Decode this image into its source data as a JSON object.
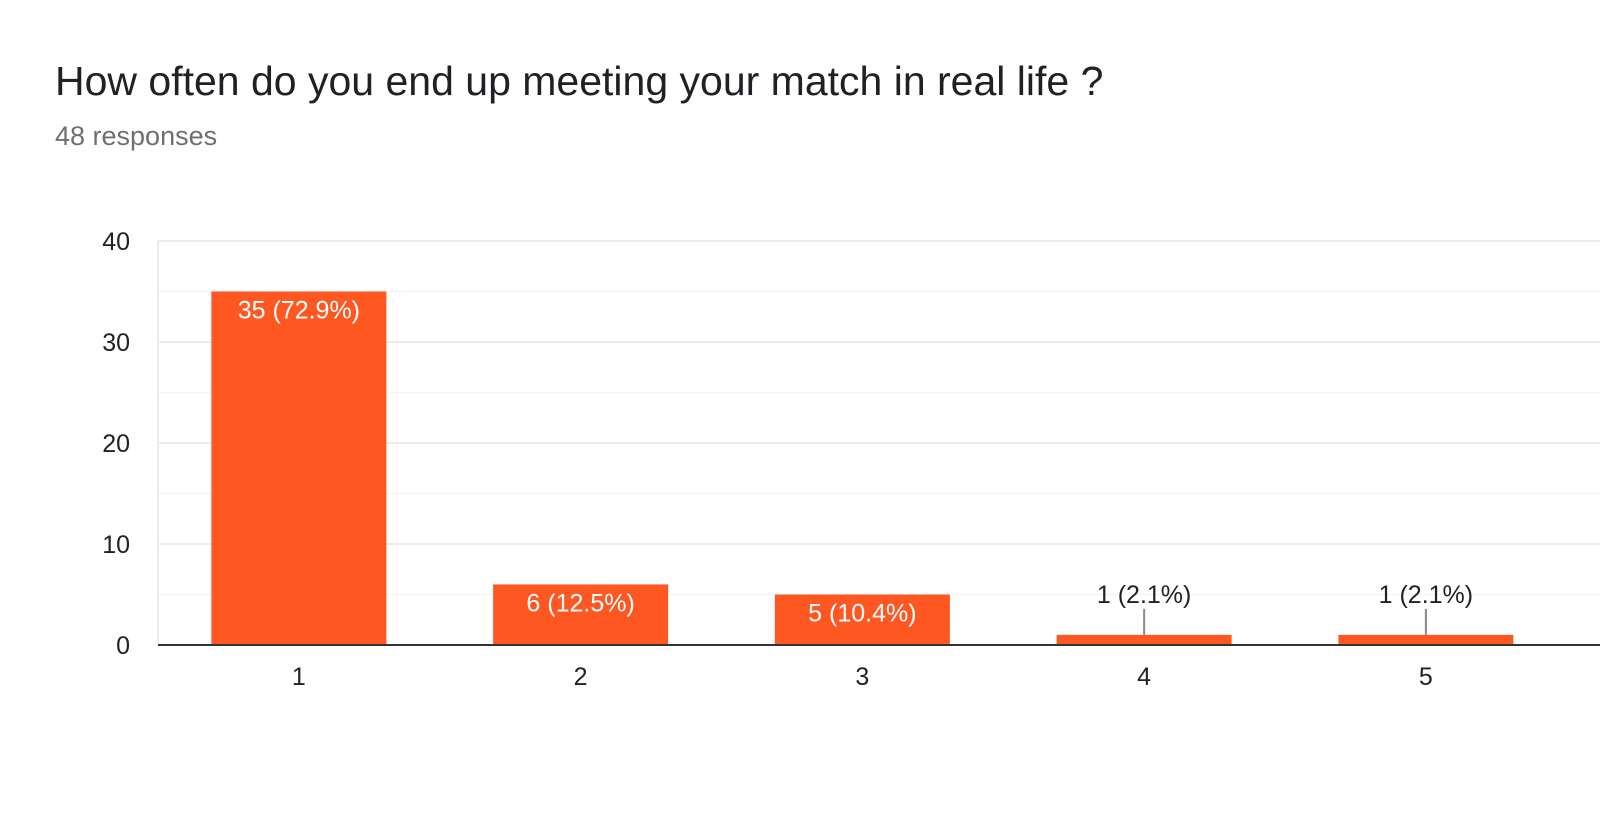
{
  "header": {
    "title": "How often do you end up meeting your match in real life ?",
    "subtitle": "48 responses"
  },
  "colors": {
    "bar": "#ff5722",
    "grid": "#ebebeb",
    "minor_grid": "#f4f4f4",
    "axis": "#333333",
    "text": "#222222",
    "label_inside": "#ffffff",
    "subtitle": "#6f6f6f"
  },
  "chart_data": {
    "type": "bar",
    "title": "How often do you end up meeting your match in real life ?",
    "subtitle": "48 responses",
    "xlabel": "",
    "ylabel": "",
    "categories": [
      "1",
      "2",
      "3",
      "4",
      "5"
    ],
    "values": [
      35,
      6,
      5,
      1,
      1
    ],
    "data_labels": [
      "35 (72.9%)",
      "6 (12.5%)",
      "5 (10.4%)",
      "1 (2.1%)",
      "1 (2.1%)"
    ],
    "ylim": [
      0,
      40
    ],
    "yticks": [
      0,
      10,
      20,
      30,
      40
    ],
    "grid": true,
    "legend": "none"
  }
}
